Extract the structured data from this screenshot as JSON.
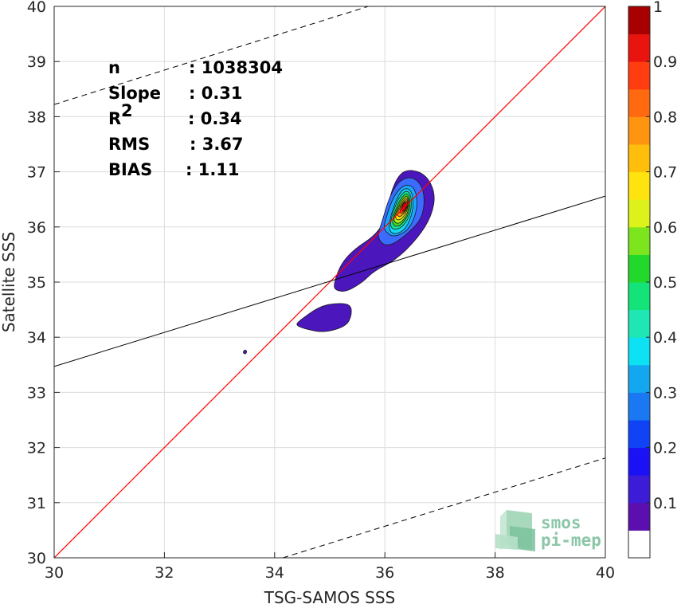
{
  "chart_data": {
    "type": "scatter-density",
    "xlabel": "TSG-SAMOS SSS",
    "ylabel": "Satellite SSS",
    "xlim": [
      30,
      40
    ],
    "ylim": [
      30,
      40
    ],
    "xticks": [
      "30",
      "32",
      "34",
      "36",
      "38",
      "40"
    ],
    "yticks": [
      "30",
      "31",
      "32",
      "33",
      "34",
      "35",
      "36",
      "37",
      "38",
      "39",
      "40"
    ],
    "grid": true,
    "stats": [
      {
        "label": "n",
        "value": ": 1038304"
      },
      {
        "label": "Slope",
        "value": ": 0.31"
      },
      {
        "label": "R",
        "sup": "2",
        "value": ": 0.34"
      },
      {
        "label": "RMS",
        "value": ": 3.67"
      },
      {
        "label": "BIAS",
        "value": ": 1.11"
      }
    ],
    "identity_line": {
      "color": "#ff0000",
      "points": [
        [
          30,
          30
        ],
        [
          40,
          40
        ]
      ]
    },
    "fit_line": {
      "color": "#000000",
      "points": [
        [
          30,
          33.47
        ],
        [
          40,
          36.56
        ]
      ]
    },
    "confidence_lines": [
      {
        "style": "dashed",
        "points": [
          [
            30,
            38.22
          ],
          [
            35.7,
            40
          ]
        ]
      },
      {
        "style": "dashed",
        "points": [
          [
            34.15,
            30
          ],
          [
            40,
            31.81
          ]
        ]
      }
    ],
    "density_contours": [
      {
        "level": 0.05,
        "color": "#4b17bd",
        "paths": [
          [
            [
              35.07,
              34.96
            ],
            [
              35.2,
              35.33
            ],
            [
              35.45,
              35.6
            ],
            [
              35.8,
              35.83
            ],
            [
              36.0,
              36.1
            ],
            [
              36.1,
              36.6
            ],
            [
              36.25,
              36.95
            ],
            [
              36.45,
              37.05
            ],
            [
              36.75,
              36.95
            ],
            [
              36.92,
              36.6
            ],
            [
              36.85,
              36.2
            ],
            [
              36.6,
              35.8
            ],
            [
              36.2,
              35.4
            ],
            [
              35.8,
              35.2
            ],
            [
              35.6,
              35.0
            ],
            [
              35.3,
              34.82
            ],
            [
              35.1,
              34.85
            ]
          ],
          [
            [
              34.45,
              34.3
            ],
            [
              34.8,
              34.55
            ],
            [
              35.1,
              34.62
            ],
            [
              35.38,
              34.6
            ],
            [
              35.4,
              34.4
            ],
            [
              35.3,
              34.2
            ],
            [
              34.9,
              34.08
            ],
            [
              34.55,
              34.15
            ],
            [
              34.38,
              34.22
            ]
          ],
          [
            [
              33.42,
              33.73
            ],
            [
              33.47,
              33.78
            ],
            [
              33.5,
              33.73
            ],
            [
              33.46,
              33.69
            ]
          ]
        ]
      },
      {
        "level": 0.1,
        "color": "#3b6bff",
        "paths": [
          [
            [
              35.95,
              36.1
            ],
            [
              36.1,
              36.6
            ],
            [
              36.3,
              36.88
            ],
            [
              36.55,
              36.9
            ],
            [
              36.72,
              36.65
            ],
            [
              36.7,
              36.2
            ],
            [
              36.45,
              35.9
            ],
            [
              36.05,
              35.62
            ],
            [
              35.85,
              35.8
            ]
          ]
        ]
      },
      {
        "level": 0.15,
        "color": "#19a7ff",
        "paths": [
          [
            [
              36.0,
              36.1
            ],
            [
              36.15,
              36.55
            ],
            [
              36.35,
              36.78
            ],
            [
              36.55,
              36.72
            ],
            [
              36.6,
              36.35
            ],
            [
              36.45,
              35.95
            ],
            [
              36.15,
              35.8
            ],
            [
              35.98,
              35.95
            ]
          ]
        ]
      },
      {
        "level": 0.25,
        "color": "#16d7ee",
        "paths": [
          [
            [
              36.05,
              36.0
            ],
            [
              36.2,
              36.5
            ],
            [
              36.35,
              36.72
            ],
            [
              36.5,
              36.65
            ],
            [
              36.52,
              36.3
            ],
            [
              36.38,
              35.95
            ],
            [
              36.15,
              35.85
            ]
          ]
        ]
      },
      {
        "level": 0.35,
        "color": "#14e59a",
        "paths": [
          [
            [
              36.08,
              36.05
            ],
            [
              36.22,
              36.48
            ],
            [
              36.37,
              36.67
            ],
            [
              36.48,
              36.6
            ],
            [
              36.48,
              36.25
            ],
            [
              36.33,
              36.0
            ],
            [
              36.16,
              35.94
            ]
          ]
        ]
      },
      {
        "level": 0.45,
        "color": "#3fd42a",
        "paths": [
          [
            [
              36.12,
              36.1
            ],
            [
              36.25,
              36.46
            ],
            [
              36.38,
              36.62
            ],
            [
              36.46,
              36.55
            ],
            [
              36.45,
              36.25
            ],
            [
              36.3,
              36.03
            ],
            [
              36.18,
              36.0
            ]
          ]
        ]
      },
      {
        "level": 0.55,
        "color": "#b7ef1c",
        "paths": [
          [
            [
              36.15,
              36.15
            ],
            [
              36.28,
              36.45
            ],
            [
              36.39,
              36.58
            ],
            [
              36.44,
              36.5
            ],
            [
              36.42,
              36.25
            ],
            [
              36.3,
              36.08
            ],
            [
              36.2,
              36.06
            ]
          ]
        ]
      },
      {
        "level": 0.65,
        "color": "#ffe20d",
        "paths": [
          [
            [
              36.18,
              36.2
            ],
            [
              36.3,
              36.44
            ],
            [
              36.4,
              36.55
            ],
            [
              36.43,
              36.46
            ],
            [
              36.4,
              36.27
            ],
            [
              36.3,
              36.14
            ],
            [
              36.22,
              36.12
            ]
          ]
        ]
      },
      {
        "level": 0.75,
        "color": "#ff9c10",
        "paths": [
          [
            [
              36.22,
              36.24
            ],
            [
              36.31,
              36.42
            ],
            [
              36.4,
              36.52
            ],
            [
              36.42,
              36.42
            ],
            [
              36.38,
              36.28
            ],
            [
              36.3,
              36.2
            ],
            [
              36.25,
              36.18
            ]
          ]
        ]
      },
      {
        "level": 0.85,
        "color": "#ff3b10",
        "paths": [
          [
            [
              36.26,
              36.28
            ],
            [
              36.33,
              36.43
            ],
            [
              36.4,
              36.48
            ],
            [
              36.41,
              36.38
            ],
            [
              36.36,
              36.28
            ],
            [
              36.3,
              36.24
            ]
          ]
        ]
      },
      {
        "level": 0.95,
        "color": "#d80000",
        "paths": [
          [
            [
              36.3,
              36.3
            ],
            [
              36.34,
              36.44
            ],
            [
              36.39,
              36.44
            ],
            [
              36.39,
              36.34
            ],
            [
              36.35,
              36.28
            ]
          ]
        ]
      }
    ],
    "colorbar": {
      "range": [
        0,
        1
      ],
      "ticks": [
        "0.1",
        "0.2",
        "0.3",
        "0.4",
        "0.5",
        "0.6",
        "0.7",
        "0.8",
        "0.9",
        "1"
      ],
      "bands": [
        {
          "from": 0.0,
          "to": 0.05,
          "color": "#ffffff"
        },
        {
          "from": 0.05,
          "to": 0.1,
          "color": "#5b0fae"
        },
        {
          "from": 0.1,
          "to": 0.15,
          "color": "#3c1cd6"
        },
        {
          "from": 0.15,
          "to": 0.2,
          "color": "#1a12f5"
        },
        {
          "from": 0.2,
          "to": 0.25,
          "color": "#0f43f5"
        },
        {
          "from": 0.25,
          "to": 0.3,
          "color": "#1a78f2"
        },
        {
          "from": 0.3,
          "to": 0.35,
          "color": "#13a7f0"
        },
        {
          "from": 0.35,
          "to": 0.4,
          "color": "#0de2f5"
        },
        {
          "from": 0.4,
          "to": 0.45,
          "color": "#1ee6b4"
        },
        {
          "from": 0.45,
          "to": 0.5,
          "color": "#14e37a"
        },
        {
          "from": 0.5,
          "to": 0.55,
          "color": "#22d82a"
        },
        {
          "from": 0.55,
          "to": 0.6,
          "color": "#7de51d"
        },
        {
          "from": 0.6,
          "to": 0.65,
          "color": "#dcf21a"
        },
        {
          "from": 0.65,
          "to": 0.7,
          "color": "#ffe30e"
        },
        {
          "from": 0.7,
          "to": 0.75,
          "color": "#ffbe0b"
        },
        {
          "from": 0.75,
          "to": 0.8,
          "color": "#ff9410"
        },
        {
          "from": 0.8,
          "to": 0.85,
          "color": "#ff6a10"
        },
        {
          "from": 0.85,
          "to": 0.9,
          "color": "#ff3d10"
        },
        {
          "from": 0.9,
          "to": 0.95,
          "color": "#e8140d"
        },
        {
          "from": 0.95,
          "to": 1.0,
          "color": "#a80000"
        }
      ]
    }
  },
  "logo": {
    "line1": "smos",
    "line2": "pi-mep",
    "color": "#8cc6a8"
  }
}
